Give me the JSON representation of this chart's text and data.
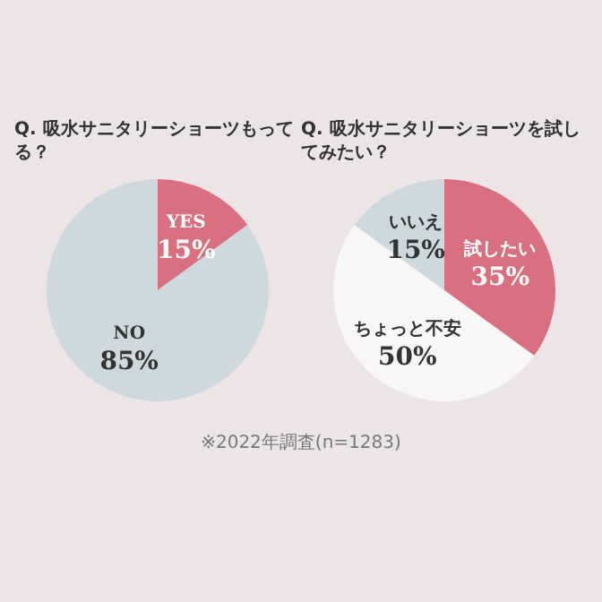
{
  "chart_data": [
    {
      "type": "pie",
      "title": "Q. 吸水サニタリーショーツもってる？",
      "categories": [
        "YES",
        "NO"
      ],
      "values": [
        15,
        85
      ],
      "value_labels": [
        "15%",
        "85%"
      ],
      "colors": [
        "#d9707f",
        "#cdd9de"
      ]
    },
    {
      "type": "pie",
      "title": "Q. 吸水サニタリーショーツを試してみたい？",
      "categories": [
        "試したい",
        "ちょっと不安",
        "いいえ"
      ],
      "values": [
        35,
        50,
        15
      ],
      "value_labels": [
        "35%",
        "50%",
        "15%"
      ],
      "colors": [
        "#d9707f",
        "#f8f6f7",
        "#cdd9de"
      ],
      "annotations": [
        "※2022年調査(n=1283)"
      ]
    }
  ]
}
